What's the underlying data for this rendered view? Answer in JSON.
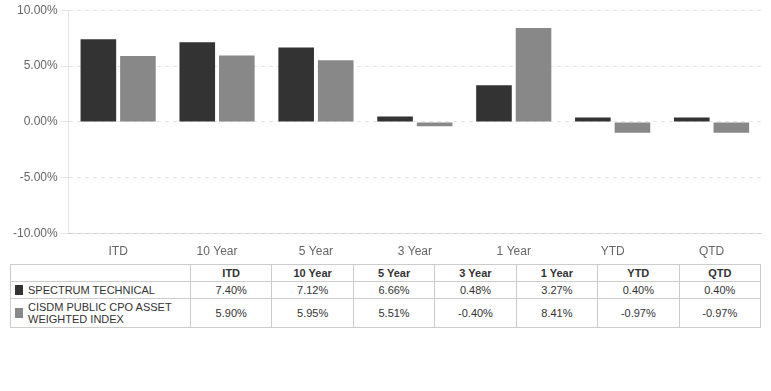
{
  "chart_data": {
    "type": "bar",
    "categories": [
      "ITD",
      "10 Year",
      "5 Year",
      "3 Year",
      "1 Year",
      "YTD",
      "QTD"
    ],
    "series": [
      {
        "name": "SPECTRUM TECHNICAL",
        "color": "#333333",
        "values": [
          7.4,
          7.12,
          6.66,
          0.48,
          3.27,
          0.4,
          0.4
        ],
        "value_labels": [
          "7.40%",
          "7.12%",
          "6.66%",
          "0.48%",
          "3.27%",
          "0.40%",
          "0.40%"
        ]
      },
      {
        "name": "CISDM PUBLIC CPO ASSET\nWEIGHTED INDEX",
        "color": "#888888",
        "values": [
          5.9,
          5.95,
          5.51,
          -0.4,
          8.41,
          -0.97,
          -0.97
        ],
        "value_labels": [
          "5.90%",
          "5.95%",
          "5.51%",
          "-0.40%",
          "8.41%",
          "-0.97%",
          "-0.97%"
        ]
      }
    ],
    "ylim": [
      -10.0,
      10.0
    ],
    "yticks": [
      {
        "value": -10.0,
        "label": "-10.00%"
      },
      {
        "value": -5.0,
        "label": "-5.00%"
      },
      {
        "value": 0.0,
        "label": "0.00%"
      },
      {
        "value": 5.0,
        "label": "5.00%"
      },
      {
        "value": 10.0,
        "label": "10.00%"
      }
    ],
    "grid": true
  }
}
